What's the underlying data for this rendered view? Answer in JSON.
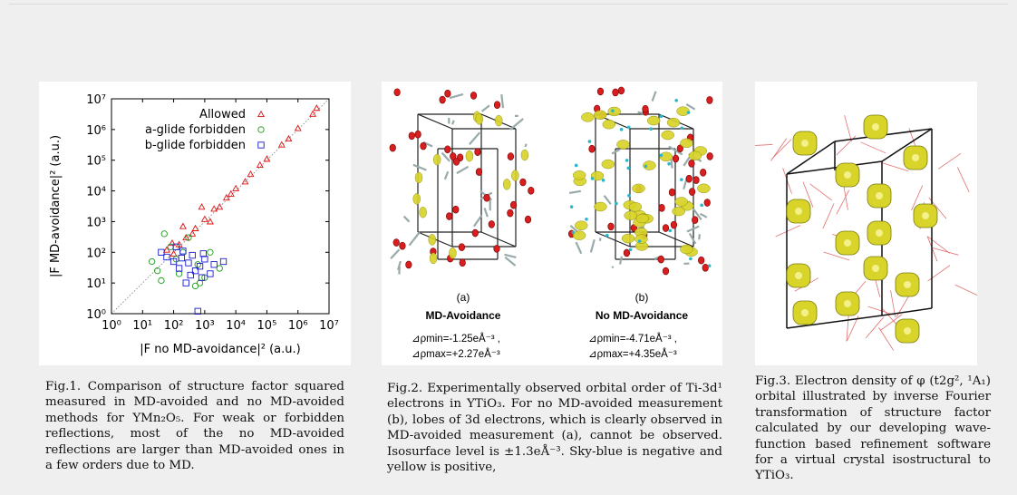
{
  "figure1": {
    "caption": "Fig.1. Comparison of structure factor squared measured in MD-avoided and no MD-avoided methods for YMn₂O₅. For weak or forbidden reflections, most of the no MD-avoided reflections are larger than MD-avoided ones in a few orders due to MD.",
    "chart_data": {
      "type": "scatter",
      "xscale": "log",
      "yscale": "log",
      "xlim": [
        1,
        10000000
      ],
      "ylim": [
        1,
        10000000
      ],
      "xlabel": "|F no MD-avoidance|² (a.u.)",
      "ylabel": "|F MD-avoidance|² (a.u.)",
      "xticks": [
        "10⁰",
        "10¹",
        "10²",
        "10³",
        "10⁴",
        "10⁵",
        "10⁶",
        "10⁷"
      ],
      "yticks": [
        "10⁰",
        "10¹",
        "10²",
        "10³",
        "10⁴",
        "10⁵",
        "10⁶",
        "10⁷"
      ],
      "legend_position": "top-right",
      "reference_line": "y = x (dotted)",
      "series": [
        {
          "name": "Allowed",
          "marker": "triangle",
          "color": "#e01010",
          "points": [
            [
              60,
              120
            ],
            [
              90,
              200
            ],
            [
              150,
              180
            ],
            [
              250,
              300
            ],
            [
              500,
              600
            ],
            [
              1000,
              1200
            ],
            [
              2000,
              2600
            ],
            [
              5000,
              6000
            ],
            [
              10000,
              12000
            ],
            [
              30000,
              35000
            ],
            [
              100000,
              110000
            ],
            [
              300000,
              320000
            ],
            [
              1000000,
              1100000
            ],
            [
              3000000,
              3200000
            ],
            [
              4000000,
              5000000
            ],
            [
              200,
              700
            ],
            [
              400,
              400
            ],
            [
              800,
              3000
            ],
            [
              3000,
              3000
            ],
            [
              20000,
              20000
            ],
            [
              60000,
              70000
            ],
            [
              500000,
              500000
            ],
            [
              100,
              90
            ],
            [
              1500,
              1000
            ],
            [
              7000,
              8000
            ]
          ]
        },
        {
          "name": "a-glide forbidden",
          "marker": "circle",
          "color": "#1a9a1a",
          "points": [
            [
              20,
              50
            ],
            [
              30,
              25
            ],
            [
              50,
              400
            ],
            [
              80,
              150
            ],
            [
              120,
              60
            ],
            [
              200,
              100
            ],
            [
              300,
              300
            ],
            [
              500,
              8
            ],
            [
              600,
              40
            ],
            [
              1000,
              15
            ],
            [
              1500,
              100
            ],
            [
              3000,
              30
            ],
            [
              40,
              12
            ],
            [
              150,
              20
            ],
            [
              700,
              10
            ]
          ]
        },
        {
          "name": "b-glide forbidden",
          "marker": "square",
          "color": "#1a1ad0",
          "points": [
            [
              40,
              100
            ],
            [
              60,
              70
            ],
            [
              100,
              50
            ],
            [
              150,
              30
            ],
            [
              200,
              110
            ],
            [
              300,
              45
            ],
            [
              400,
              80
            ],
            [
              500,
              25
            ],
            [
              600,
              1.2
            ],
            [
              800,
              15
            ],
            [
              1000,
              60
            ],
            [
              2000,
              40
            ],
            [
              4000,
              50
            ],
            [
              250,
              10
            ],
            [
              120,
              150
            ],
            [
              350,
              18
            ],
            [
              900,
              90
            ],
            [
              1500,
              20
            ],
            [
              700,
              35
            ],
            [
              180,
              65
            ]
          ]
        }
      ]
    }
  },
  "figure2": {
    "panel_a": {
      "letter": "(a)",
      "title": "MD-Avoidance",
      "rho_min": "⊿ρmin=-1.25eÅ⁻³ ,",
      "rho_max": "⊿ρmax=+2.27eÅ⁻³"
    },
    "panel_b": {
      "letter": "(b)",
      "title": "No MD-Avoidance",
      "rho_min": "⊿ρmin=-4.71eÅ⁻³ ,",
      "rho_max": "⊿ρmax=+4.35eÅ⁻³"
    },
    "caption": "Fig.2. Experimentally observed orbital order of Ti-3d¹ electrons in YTiO₃. For no MD-avoided measurement (b), lobes of 3d electrons, which is clearly observed in MD-avoided measurement (a), cannot be observed. Isosurface level is ±1.3eÅ⁻³. Sky-blue is negative and yellow is positive,"
  },
  "figure3": {
    "caption": "Fig.3. Electron density of φ (t2g², ¹A₁) orbital illustrated by inverse Fourier transformation of structure factor calculated by our developing wave-function based refinement software for a virtual crystal isostructural to YTiO₃."
  },
  "colors": {
    "background": "#efefef",
    "panel": "#ffffff",
    "allowed": "#e01010",
    "a_glide": "#1a9a1a",
    "b_glide": "#1a1ad0",
    "oxygen": "#d81e1e",
    "density_yellow": "#d8d42a",
    "negative_blue": "#2ab6c8"
  }
}
